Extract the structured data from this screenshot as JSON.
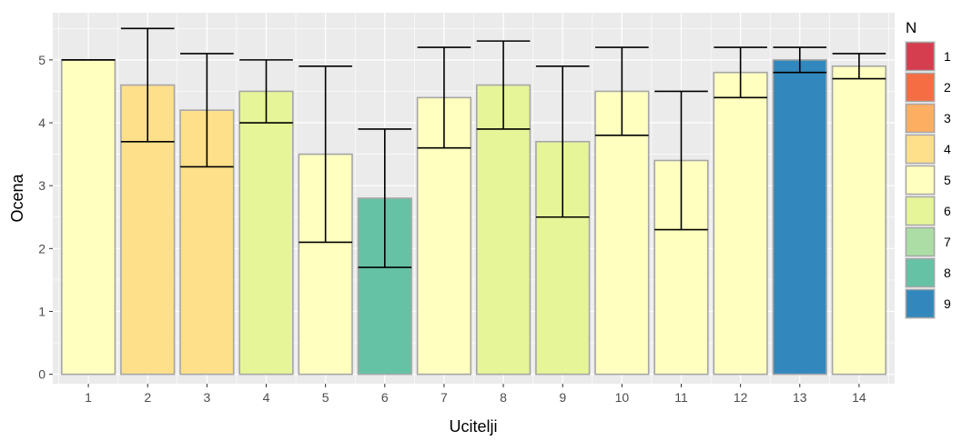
{
  "chart_data": {
    "type": "bar",
    "xlabel": "Ucitelji",
    "ylabel": "Ocena",
    "categories": [
      "1",
      "2",
      "3",
      "4",
      "5",
      "6",
      "7",
      "8",
      "9",
      "10",
      "11",
      "12",
      "13",
      "14"
    ],
    "values": [
      5.0,
      4.6,
      4.2,
      4.5,
      3.5,
      2.8,
      4.4,
      4.6,
      3.7,
      4.5,
      3.4,
      4.8,
      5.0,
      4.9
    ],
    "error_low": [
      5.0,
      3.7,
      3.3,
      4.0,
      2.1,
      1.7,
      3.6,
      3.9,
      2.5,
      3.8,
      2.3,
      4.4,
      4.8,
      4.7
    ],
    "error_high": [
      5.0,
      5.5,
      5.1,
      5.0,
      4.9,
      3.9,
      5.2,
      5.3,
      4.9,
      5.2,
      4.5,
      5.2,
      5.2,
      5.1
    ],
    "fill_n": [
      5,
      4,
      4,
      6,
      5,
      8,
      5,
      6,
      6,
      5,
      5,
      5,
      9,
      5
    ],
    "ylim": [
      -0.15,
      5.75
    ],
    "yticks": [
      0,
      1,
      2,
      3,
      4,
      5
    ],
    "grid": true,
    "legend": {
      "title": "N",
      "placement": "right",
      "entries": [
        {
          "label": "1",
          "color": "#D53E4F"
        },
        {
          "label": "2",
          "color": "#F46D43"
        },
        {
          "label": "3",
          "color": "#FDAE61"
        },
        {
          "label": "4",
          "color": "#FEE08B"
        },
        {
          "label": "5",
          "color": "#FFFFBF"
        },
        {
          "label": "6",
          "color": "#E6F598"
        },
        {
          "label": "7",
          "color": "#ABDDA4"
        },
        {
          "label": "8",
          "color": "#66C2A5"
        },
        {
          "label": "9",
          "color": "#3288BD"
        }
      ]
    },
    "colors": {
      "panel_background": "#EBEBEB",
      "grid_line": "#FFFFFF",
      "bar_outline": "#A6A6A6",
      "errorbar": "#000000",
      "tick_text": "#4D4D4D"
    }
  }
}
